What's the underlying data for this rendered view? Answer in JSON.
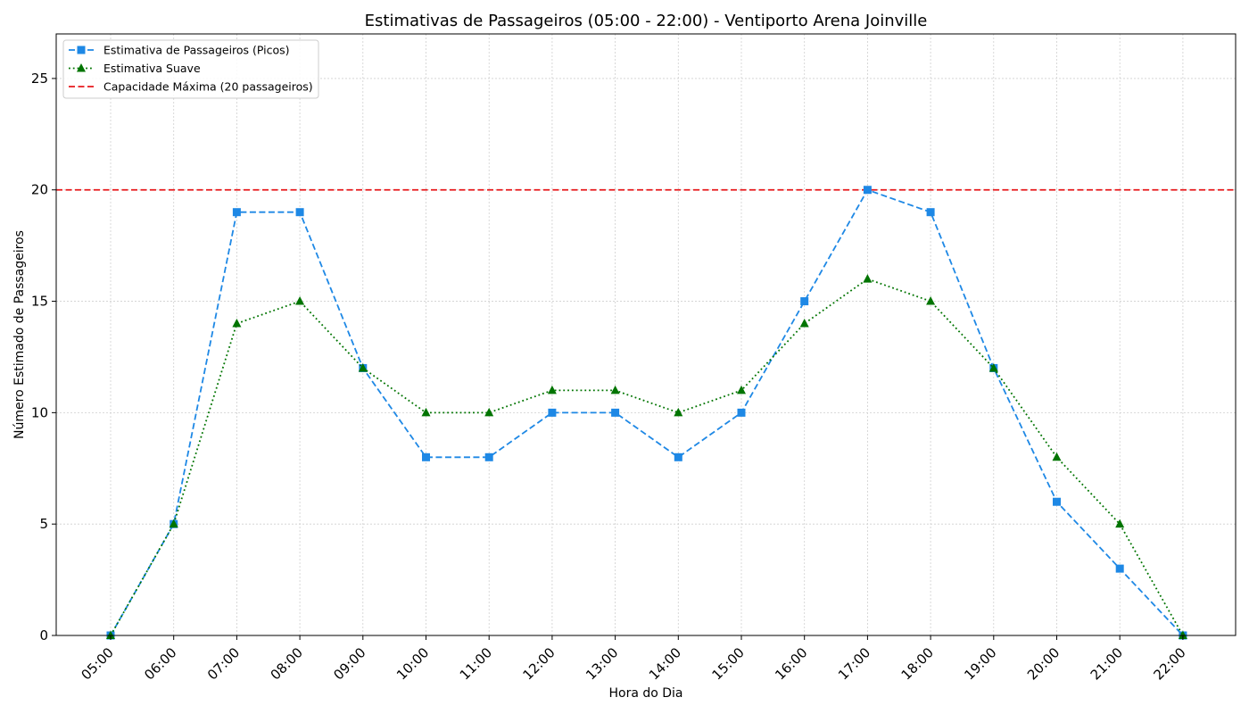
{
  "chart_data": {
    "type": "line",
    "title": "Estimativas de Passageiros (05:00 - 22:00) - Ventiporto Arena Joinville",
    "xlabel": "Hora do Dia",
    "ylabel": "Número Estimado de Passageiros",
    "categories": [
      "05:00",
      "06:00",
      "07:00",
      "08:00",
      "09:00",
      "10:00",
      "11:00",
      "12:00",
      "13:00",
      "14:00",
      "15:00",
      "16:00",
      "17:00",
      "18:00",
      "19:00",
      "20:00",
      "21:00",
      "22:00"
    ],
    "ylim": [
      0,
      27
    ],
    "yticks": [
      0,
      5,
      10,
      15,
      20,
      25
    ],
    "grid": true,
    "legend_position": "top-left",
    "series": [
      {
        "name": "Estimativa de Passageiros (Picos)",
        "values": [
          0,
          5,
          19,
          19,
          12,
          8,
          8,
          10,
          10,
          8,
          10,
          15,
          20,
          19,
          12,
          6,
          3,
          0
        ],
        "color": "#1e88e5",
        "linestyle": "dashed",
        "marker": "square"
      },
      {
        "name": "Estimativa Suave",
        "values": [
          0,
          5,
          14,
          15,
          12,
          10,
          10,
          11,
          11,
          10,
          11,
          14,
          16,
          15,
          12,
          8,
          5,
          0
        ],
        "color": "#007400",
        "linestyle": "dotted",
        "marker": "triangle"
      }
    ],
    "reference_line": {
      "name": "Capacidade Máxima (20 passageiros)",
      "value": 20,
      "color": "#e8191c",
      "linestyle": "dashed"
    }
  }
}
